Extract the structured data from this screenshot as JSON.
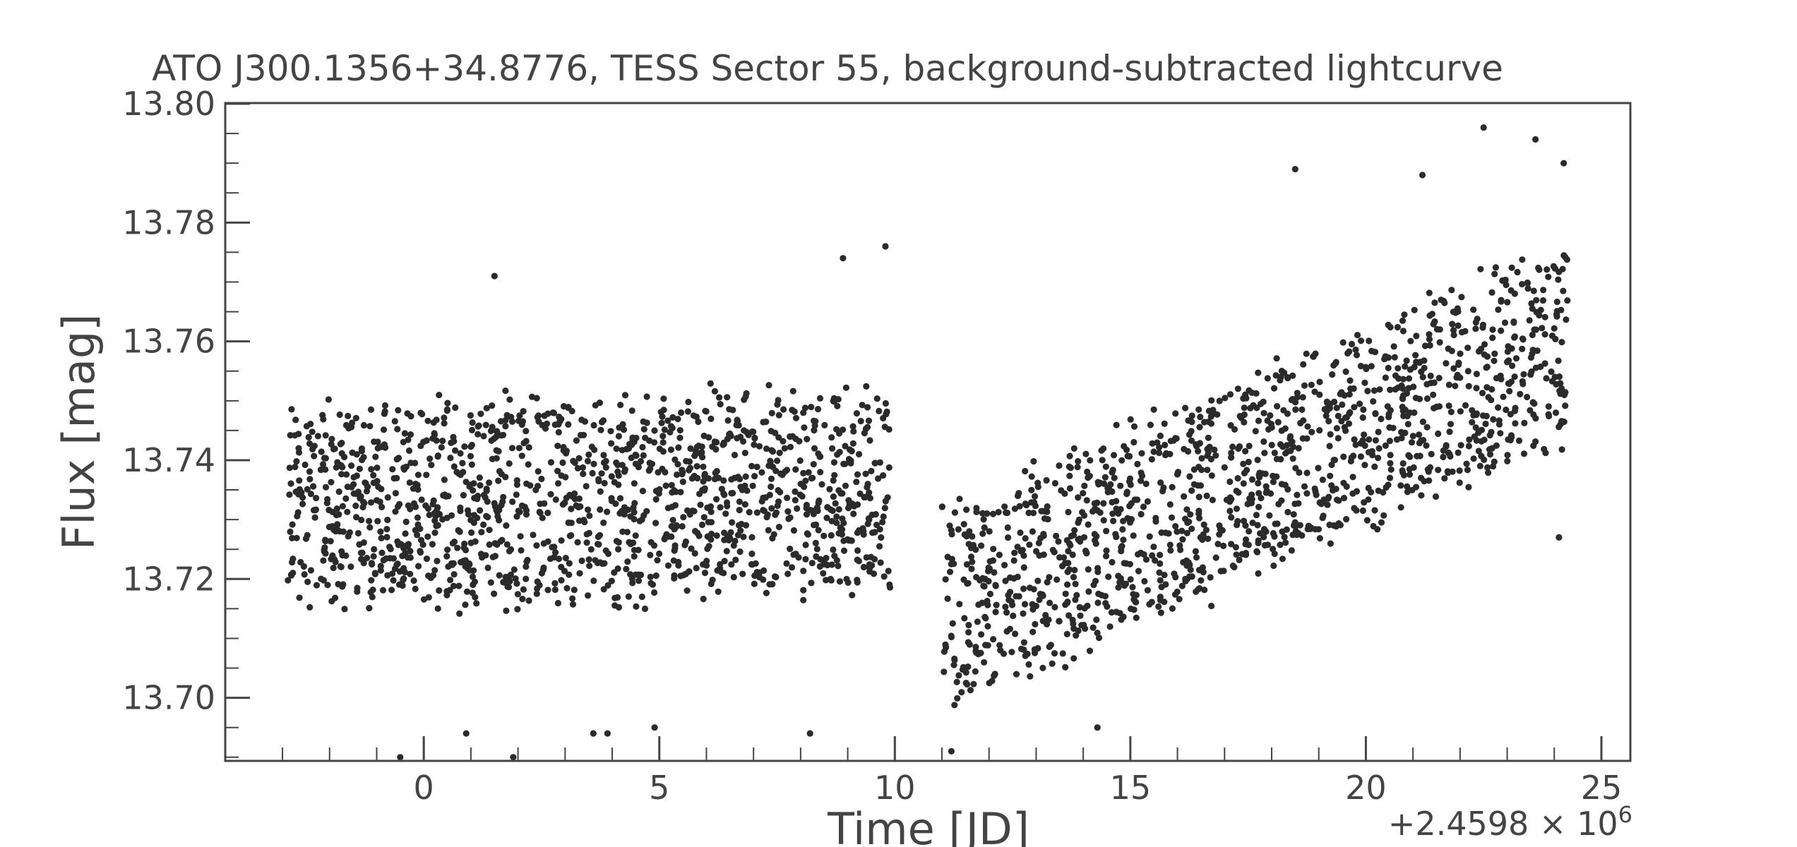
{
  "chart_data": {
    "type": "scatter",
    "title": "ATO J300.1356+34.8776, TESS Sector 55, background-subtracted lightcurve",
    "xlabel": "Time [JD]",
    "ylabel": "Flux [mag]",
    "x_offset_label": "+2.4598 × 10",
    "x_offset_exponent": "6",
    "xlim": [
      -4.2,
      25.6
    ],
    "ylim": [
      13.8,
      13.6895
    ],
    "y_inverted": true,
    "grid": false,
    "legend": "none",
    "xticks": [
      0,
      5,
      10,
      15,
      20,
      25
    ],
    "xtick_labels": [
      "0",
      "5",
      "10",
      "15",
      "20",
      "25"
    ],
    "yticks": [
      13.7,
      13.72,
      13.74,
      13.76,
      13.78,
      13.8
    ],
    "ytick_labels": [
      "13.70",
      "13.72",
      "13.74",
      "13.76",
      "13.78",
      "13.80"
    ],
    "marker_color": "#2b2b2b",
    "series": [
      {
        "segments": [
          {
            "x_start": -2.9,
            "x_end": 9.9,
            "trend_start": 13.732,
            "trend_end": 13.735,
            "scatter": 0.016,
            "count": 1400
          },
          {
            "x_start": 11.0,
            "x_end": 24.3,
            "trend_start": 13.715,
            "trend_end": 13.76,
            "scatter": 0.016,
            "count": 1350
          }
        ],
        "points": [
          {
            "x": -0.5,
            "y": 13.69
          },
          {
            "x": 1.9,
            "y": 13.69
          },
          {
            "x": 1.5,
            "y": 13.771
          },
          {
            "x": 11.2,
            "y": 13.691
          },
          {
            "x": 14.3,
            "y": 13.695
          },
          {
            "x": 18.5,
            "y": 13.789
          },
          {
            "x": 22.5,
            "y": 13.796
          },
          {
            "x": 23.6,
            "y": 13.794
          },
          {
            "x": 9.8,
            "y": 13.776
          },
          {
            "x": 8.9,
            "y": 13.774
          },
          {
            "x": 8.2,
            "y": 13.694
          },
          {
            "x": 3.6,
            "y": 13.694
          },
          {
            "x": 3.9,
            "y": 13.694
          },
          {
            "x": 4.9,
            "y": 13.695
          },
          {
            "x": 0.9,
            "y": 13.694
          },
          {
            "x": 24.1,
            "y": 13.727
          },
          {
            "x": 24.2,
            "y": 13.79
          },
          {
            "x": 21.2,
            "y": 13.788
          }
        ]
      }
    ]
  }
}
